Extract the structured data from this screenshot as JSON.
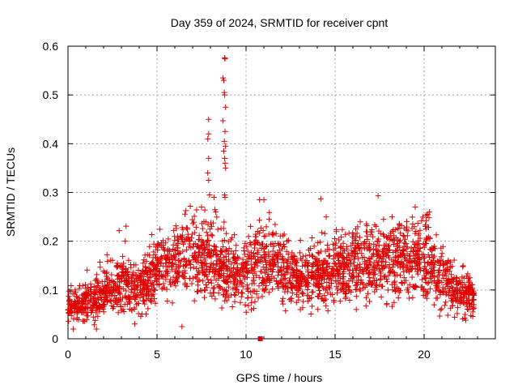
{
  "chart_data": {
    "type": "scatter",
    "title": "Day 359 of 2024, SRMTID for receiver cpnt",
    "xlabel": "GPS time / hours",
    "ylabel": "SRMTID / TECUs",
    "xlim": [
      0,
      24
    ],
    "ylim": [
      0,
      0.6
    ],
    "xticks": [
      0,
      5,
      10,
      15,
      20
    ],
    "yticks": [
      0,
      0.1,
      0.2,
      0.3,
      0.4,
      0.5,
      0.6
    ],
    "xtick_labels": [
      "0",
      "5",
      "10",
      "15",
      "20"
    ],
    "ytick_labels": [
      "0",
      "0.1",
      "0.2",
      "0.3",
      "0.4",
      "0.5",
      "0.6"
    ],
    "grid": true,
    "marker": "+",
    "series_color": "#e00000",
    "time_range_hours": [
      0,
      22.8
    ],
    "baseline_trend": [
      {
        "x": 0.0,
        "y": 0.065
      },
      {
        "x": 1.0,
        "y": 0.075
      },
      {
        "x": 2.0,
        "y": 0.095
      },
      {
        "x": 3.0,
        "y": 0.11
      },
      {
        "x": 4.0,
        "y": 0.105
      },
      {
        "x": 5.0,
        "y": 0.14
      },
      {
        "x": 6.0,
        "y": 0.15
      },
      {
        "x": 7.0,
        "y": 0.175
      },
      {
        "x": 8.0,
        "y": 0.16
      },
      {
        "x": 9.0,
        "y": 0.14
      },
      {
        "x": 10.0,
        "y": 0.13
      },
      {
        "x": 11.0,
        "y": 0.17
      },
      {
        "x": 12.0,
        "y": 0.14
      },
      {
        "x": 13.0,
        "y": 0.12
      },
      {
        "x": 14.0,
        "y": 0.13
      },
      {
        "x": 15.0,
        "y": 0.14
      },
      {
        "x": 16.0,
        "y": 0.15
      },
      {
        "x": 17.0,
        "y": 0.16
      },
      {
        "x": 18.0,
        "y": 0.165
      },
      {
        "x": 19.0,
        "y": 0.15
      },
      {
        "x": 20.0,
        "y": 0.17
      },
      {
        "x": 21.0,
        "y": 0.12
      },
      {
        "x": 22.0,
        "y": 0.09
      },
      {
        "x": 22.8,
        "y": 0.09
      }
    ],
    "peak_points": [
      {
        "x": 8.8,
        "y": 0.576
      },
      {
        "x": 8.82,
        "y": 0.574
      },
      {
        "x": 8.7,
        "y": 0.535
      },
      {
        "x": 8.75,
        "y": 0.53
      },
      {
        "x": 8.78,
        "y": 0.505
      },
      {
        "x": 8.8,
        "y": 0.5
      },
      {
        "x": 8.85,
        "y": 0.475
      },
      {
        "x": 8.7,
        "y": 0.447
      },
      {
        "x": 8.82,
        "y": 0.425
      },
      {
        "x": 8.78,
        "y": 0.405
      },
      {
        "x": 8.85,
        "y": 0.395
      },
      {
        "x": 8.75,
        "y": 0.385
      },
      {
        "x": 8.8,
        "y": 0.37
      },
      {
        "x": 8.82,
        "y": 0.36
      },
      {
        "x": 8.85,
        "y": 0.35
      },
      {
        "x": 8.8,
        "y": 0.295
      },
      {
        "x": 8.82,
        "y": 0.29
      },
      {
        "x": 7.9,
        "y": 0.45
      },
      {
        "x": 7.9,
        "y": 0.42
      },
      {
        "x": 7.85,
        "y": 0.41
      },
      {
        "x": 7.9,
        "y": 0.37
      },
      {
        "x": 7.85,
        "y": 0.34
      },
      {
        "x": 7.9,
        "y": 0.325
      },
      {
        "x": 7.95,
        "y": 0.295
      },
      {
        "x": 8.2,
        "y": 0.29
      },
      {
        "x": 7.5,
        "y": 0.27
      },
      {
        "x": 8.3,
        "y": 0.26
      },
      {
        "x": 14.2,
        "y": 0.287
      },
      {
        "x": 11.0,
        "y": 0.285
      },
      {
        "x": 19.5,
        "y": 0.27
      },
      {
        "x": 20.3,
        "y": 0.26
      },
      {
        "x": 20.2,
        "y": 0.255
      },
      {
        "x": 14.5,
        "y": 0.25
      },
      {
        "x": 18.2,
        "y": 0.25
      },
      {
        "x": 11.3,
        "y": 0.245
      },
      {
        "x": 6.4,
        "y": 0.025
      },
      {
        "x": 1.6,
        "y": 0.02
      },
      {
        "x": 0.3,
        "y": 0.02
      }
    ],
    "special_marker": {
      "x": 10.8,
      "y": 0.0
    }
  }
}
